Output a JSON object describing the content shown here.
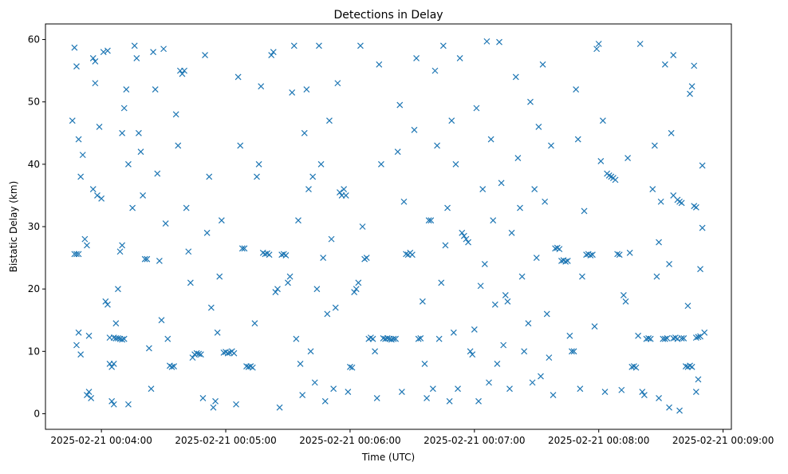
{
  "chart_data": {
    "type": "scatter",
    "title": "Detections in Delay",
    "xlabel": "Time (UTC)",
    "ylabel": "Bistatic Delay (km)",
    "x_unit": "seconds since 2025-02-21 00:00:00 UTC",
    "xlim": [
      213,
      544
    ],
    "ylim": [
      -2.5,
      62.5
    ],
    "xticks": [
      {
        "v": 240,
        "label": "2025-02-21 00:04:00"
      },
      {
        "v": 300,
        "label": "2025-02-21 00:05:00"
      },
      {
        "v": 360,
        "label": "2025-02-21 00:06:00"
      },
      {
        "v": 420,
        "label": "2025-02-21 00:07:00"
      },
      {
        "v": 480,
        "label": "2025-02-21 00:08:00"
      },
      {
        "v": 540,
        "label": "2025-02-21 00:09:00"
      }
    ],
    "yticks": [
      0,
      10,
      20,
      30,
      40,
      50,
      60
    ],
    "marker": "x",
    "color": "#1f77b4",
    "grid": false,
    "points": [
      [
        227,
        25.6
      ],
      [
        228,
        25.6
      ],
      [
        229,
        25.6
      ],
      [
        226,
        47
      ],
      [
        227,
        58.7
      ],
      [
        228,
        55.7
      ],
      [
        229,
        44
      ],
      [
        230,
        38
      ],
      [
        231,
        41.5
      ],
      [
        232,
        28
      ],
      [
        233,
        27
      ],
      [
        233,
        3
      ],
      [
        234,
        3.5
      ],
      [
        235,
        2.5
      ],
      [
        234,
        12.5
      ],
      [
        229,
        13
      ],
      [
        228,
        11
      ],
      [
        230,
        9.5
      ],
      [
        236,
        57
      ],
      [
        237,
        56.5
      ],
      [
        237,
        53
      ],
      [
        236,
        36
      ],
      [
        238,
        35
      ],
      [
        240,
        34.5
      ],
      [
        239,
        46
      ],
      [
        241,
        58
      ],
      [
        243,
        58.2
      ],
      [
        244,
        8
      ],
      [
        245,
        7.5
      ],
      [
        246,
        8
      ],
      [
        244,
        12.2
      ],
      [
        246,
        12.2
      ],
      [
        247,
        12.1
      ],
      [
        248,
        12.1
      ],
      [
        249,
        12
      ],
      [
        250,
        11.9
      ],
      [
        251,
        12
      ],
      [
        242,
        18
      ],
      [
        243,
        17.5
      ],
      [
        245,
        2
      ],
      [
        246,
        1.5
      ],
      [
        247,
        14.5
      ],
      [
        248,
        20
      ],
      [
        249,
        26
      ],
      [
        250,
        27
      ],
      [
        250,
        45
      ],
      [
        251,
        49
      ],
      [
        252,
        52
      ],
      [
        253,
        1.5
      ],
      [
        253,
        40
      ],
      [
        255,
        33
      ],
      [
        256,
        59
      ],
      [
        257,
        57
      ],
      [
        258,
        45
      ],
      [
        259,
        42
      ],
      [
        260,
        35
      ],
      [
        261,
        24.8
      ],
      [
        262,
        24.8
      ],
      [
        263,
        10.5
      ],
      [
        264,
        4
      ],
      [
        265,
        58
      ],
      [
        266,
        52
      ],
      [
        267,
        38.5
      ],
      [
        268,
        24.5
      ],
      [
        269,
        15
      ],
      [
        270,
        58.5
      ],
      [
        272,
        12
      ],
      [
        273,
        7.7
      ],
      [
        274,
        7.5
      ],
      [
        275,
        7.6
      ],
      [
        271,
        30.5
      ],
      [
        276,
        48
      ],
      [
        277,
        43
      ],
      [
        278,
        55
      ],
      [
        279,
        54.5
      ],
      [
        280,
        55
      ],
      [
        281,
        33
      ],
      [
        282,
        26
      ],
      [
        283,
        21
      ],
      [
        284,
        9
      ],
      [
        285,
        9.5
      ],
      [
        286,
        9.7
      ],
      [
        287,
        9.6
      ],
      [
        288,
        9.5
      ],
      [
        289,
        2.5
      ],
      [
        290,
        57.5
      ],
      [
        291,
        29
      ],
      [
        292,
        38
      ],
      [
        293,
        17
      ],
      [
        294,
        1
      ],
      [
        295,
        2
      ],
      [
        296,
        13
      ],
      [
        297,
        22
      ],
      [
        298,
        31
      ],
      [
        299,
        9.8
      ],
      [
        300,
        9.9
      ],
      [
        301,
        9.7
      ],
      [
        302,
        9.8
      ],
      [
        303,
        10
      ],
      [
        304,
        9.7
      ],
      [
        305,
        1.5
      ],
      [
        306,
        54
      ],
      [
        307,
        43
      ],
      [
        308,
        26.5
      ],
      [
        309,
        26.5
      ],
      [
        310,
        7.6
      ],
      [
        311,
        7.5
      ],
      [
        312,
        7.6
      ],
      [
        313,
        7.4
      ],
      [
        314,
        14.5
      ],
      [
        315,
        38
      ],
      [
        316,
        40
      ],
      [
        317,
        52.5
      ],
      [
        318,
        25.8
      ],
      [
        319,
        25.6
      ],
      [
        320,
        25.7
      ],
      [
        321,
        25.5
      ],
      [
        322,
        57.5
      ],
      [
        323,
        58
      ],
      [
        324,
        19.5
      ],
      [
        325,
        20
      ],
      [
        326,
        1
      ],
      [
        327,
        25.5
      ],
      [
        328,
        25.6
      ],
      [
        329,
        25.4
      ],
      [
        330,
        21
      ],
      [
        331,
        22
      ],
      [
        332,
        51.5
      ],
      [
        333,
        59
      ],
      [
        334,
        12
      ],
      [
        335,
        31
      ],
      [
        336,
        8
      ],
      [
        337,
        3
      ],
      [
        338,
        45
      ],
      [
        339,
        52
      ],
      [
        340,
        36
      ],
      [
        341,
        10
      ],
      [
        342,
        38
      ],
      [
        343,
        5
      ],
      [
        344,
        20
      ],
      [
        345,
        59
      ],
      [
        346,
        40
      ],
      [
        347,
        25
      ],
      [
        348,
        2
      ],
      [
        349,
        16
      ],
      [
        350,
        47
      ],
      [
        351,
        28
      ],
      [
        352,
        4
      ],
      [
        353,
        17
      ],
      [
        354,
        53
      ],
      [
        355,
        35.5
      ],
      [
        356,
        35
      ],
      [
        357,
        36
      ],
      [
        358,
        35
      ],
      [
        359,
        3.5
      ],
      [
        360,
        7.5
      ],
      [
        361,
        7.4
      ],
      [
        362,
        19.5
      ],
      [
        363,
        20
      ],
      [
        364,
        21
      ],
      [
        365,
        59
      ],
      [
        366,
        30
      ],
      [
        367,
        24.8
      ],
      [
        368,
        25
      ],
      [
        369,
        12
      ],
      [
        370,
        12.2
      ],
      [
        371,
        12
      ],
      [
        372,
        10
      ],
      [
        373,
        2.5
      ],
      [
        374,
        56
      ],
      [
        375,
        40
      ],
      [
        376,
        12.1
      ],
      [
        377,
        12
      ],
      [
        378,
        12.1
      ],
      [
        379,
        12
      ],
      [
        380,
        11.9
      ],
      [
        381,
        12
      ],
      [
        382,
        12
      ],
      [
        383,
        42
      ],
      [
        384,
        49.5
      ],
      [
        385,
        3.5
      ],
      [
        386,
        34
      ],
      [
        387,
        25.6
      ],
      [
        388,
        25.5
      ],
      [
        389,
        25.8
      ],
      [
        390,
        25.5
      ],
      [
        391,
        45.5
      ],
      [
        392,
        57
      ],
      [
        393,
        12
      ],
      [
        394,
        12.1
      ],
      [
        395,
        18
      ],
      [
        396,
        8
      ],
      [
        397,
        2.5
      ],
      [
        398,
        31
      ],
      [
        399,
        31
      ],
      [
        400,
        4
      ],
      [
        401,
        55
      ],
      [
        402,
        43
      ],
      [
        403,
        12
      ],
      [
        404,
        21
      ],
      [
        405,
        59
      ],
      [
        406,
        27
      ],
      [
        407,
        33
      ],
      [
        408,
        2
      ],
      [
        409,
        47
      ],
      [
        410,
        13
      ],
      [
        411,
        40
      ],
      [
        412,
        4
      ],
      [
        413,
        57
      ],
      [
        414,
        29
      ],
      [
        415,
        28.5
      ],
      [
        416,
        28
      ],
      [
        417,
        27.5
      ],
      [
        418,
        10
      ],
      [
        419,
        9.5
      ],
      [
        420,
        13.5
      ],
      [
        421,
        49
      ],
      [
        422,
        2
      ],
      [
        423,
        20.5
      ],
      [
        424,
        36
      ],
      [
        425,
        24
      ],
      [
        426,
        59.7
      ],
      [
        427,
        5
      ],
      [
        428,
        44
      ],
      [
        429,
        31
      ],
      [
        430,
        17.5
      ],
      [
        431,
        8
      ],
      [
        432,
        59.6
      ],
      [
        433,
        37
      ],
      [
        434,
        11
      ],
      [
        435,
        19
      ],
      [
        436,
        18
      ],
      [
        437,
        4
      ],
      [
        438,
        29
      ],
      [
        440,
        54
      ],
      [
        441,
        41
      ],
      [
        442,
        33
      ],
      [
        443,
        22
      ],
      [
        444,
        10
      ],
      [
        446,
        14.5
      ],
      [
        447,
        50
      ],
      [
        448,
        5
      ],
      [
        449,
        36
      ],
      [
        450,
        25
      ],
      [
        451,
        46
      ],
      [
        452,
        6
      ],
      [
        453,
        56
      ],
      [
        454,
        34
      ],
      [
        455,
        16
      ],
      [
        456,
        9
      ],
      [
        457,
        43
      ],
      [
        458,
        3
      ],
      [
        459,
        26.5
      ],
      [
        460,
        26.6
      ],
      [
        461,
        26.4
      ],
      [
        462,
        24.5
      ],
      [
        463,
        24.6
      ],
      [
        464,
        24.4
      ],
      [
        465,
        24.5
      ],
      [
        466,
        12.5
      ],
      [
        467,
        10
      ],
      [
        468,
        10
      ],
      [
        469,
        52
      ],
      [
        470,
        44
      ],
      [
        471,
        4
      ],
      [
        472,
        22
      ],
      [
        473,
        32.5
      ],
      [
        474,
        25.5
      ],
      [
        475,
        25.6
      ],
      [
        476,
        25.4
      ],
      [
        477,
        25.5
      ],
      [
        478,
        14
      ],
      [
        479,
        58.5
      ],
      [
        480,
        59.3
      ],
      [
        481,
        40.5
      ],
      [
        482,
        47
      ],
      [
        483,
        3.5
      ],
      [
        484,
        38.5
      ],
      [
        485,
        38.2
      ],
      [
        486,
        38
      ],
      [
        487,
        37.8
      ],
      [
        488,
        37.5
      ],
      [
        489,
        25.6
      ],
      [
        490,
        25.5
      ],
      [
        491,
        3.8
      ],
      [
        492,
        19
      ],
      [
        493,
        18
      ],
      [
        494,
        41
      ],
      [
        495,
        25.8
      ],
      [
        496,
        7.5
      ],
      [
        497,
        7.6
      ],
      [
        498,
        7.4
      ],
      [
        499,
        12.5
      ],
      [
        500,
        59.3
      ],
      [
        501,
        3.5
      ],
      [
        502,
        3
      ],
      [
        503,
        12
      ],
      [
        504,
        12.1
      ],
      [
        505,
        12
      ],
      [
        506,
        36
      ],
      [
        507,
        43
      ],
      [
        508,
        22
      ],
      [
        509,
        27.5
      ],
      [
        510,
        34
      ],
      [
        511,
        12
      ],
      [
        512,
        12
      ],
      [
        513,
        12.1
      ],
      [
        514,
        24
      ],
      [
        515,
        45
      ],
      [
        516,
        35
      ],
      [
        517,
        12.2
      ],
      [
        518,
        34.3
      ],
      [
        519,
        34
      ],
      [
        520,
        33.8
      ],
      [
        521,
        12.1
      ],
      [
        522,
        7.6
      ],
      [
        523,
        7.5
      ],
      [
        524,
        7.7
      ],
      [
        525,
        7.5
      ],
      [
        526,
        33.3
      ],
      [
        527,
        33.1
      ],
      [
        528,
        12.3
      ],
      [
        529,
        12.4
      ],
      [
        530,
        39.8
      ],
      [
        530,
        29.8
      ],
      [
        529,
        23.2
      ],
      [
        531,
        13
      ],
      [
        526,
        55.8
      ],
      [
        525,
        52.5
      ],
      [
        524,
        51.3
      ],
      [
        523,
        17.3
      ],
      [
        527,
        3.5
      ],
      [
        528,
        5.5
      ],
      [
        512,
        56
      ],
      [
        516,
        57.5
      ],
      [
        519,
        0.5
      ],
      [
        514,
        1
      ],
      [
        509,
        2.5
      ],
      [
        520,
        12.1
      ],
      [
        518,
        12
      ],
      [
        516,
        12.1
      ],
      [
        527,
        12.2
      ]
    ]
  }
}
